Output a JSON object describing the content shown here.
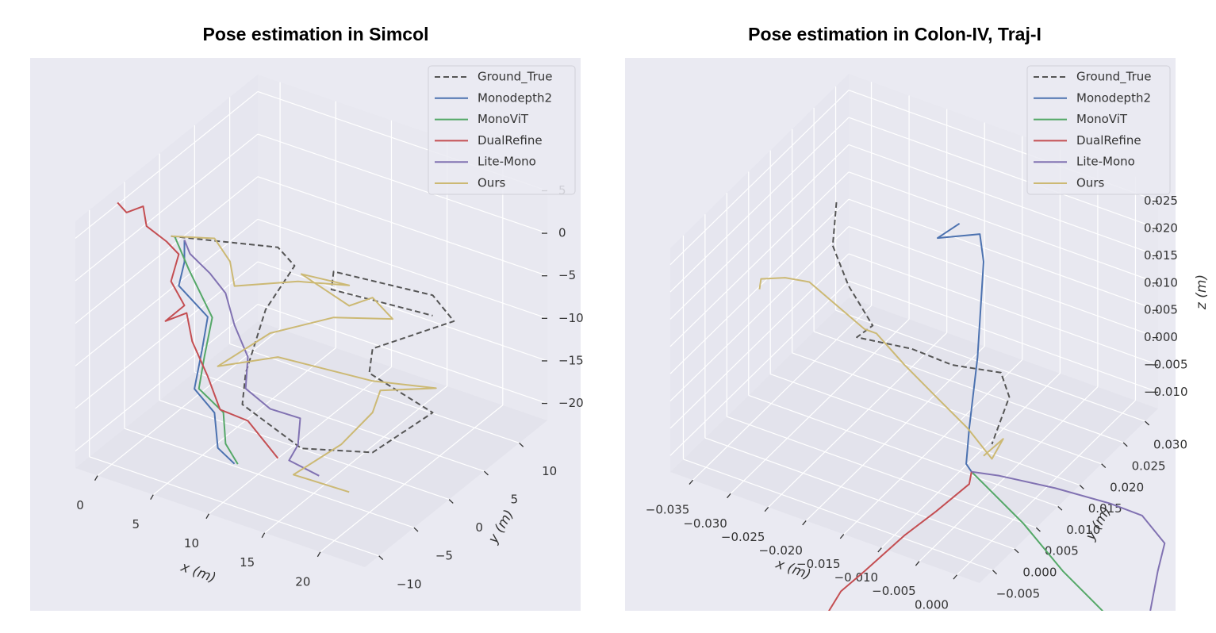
{
  "chart_data": [
    {
      "type": "line3d",
      "title": "Pose estimation in Simcol",
      "xlabel": "x (m)",
      "ylabel": "y (m)",
      "xlim": [
        -2,
        24
      ],
      "ylim": [
        -12,
        14
      ],
      "zlim": [
        -22,
        7
      ],
      "xticks": [
        0,
        5,
        10,
        15,
        20
      ],
      "yticks": [
        {
          "value": -10,
          "label": "−10"
        },
        {
          "value": -5,
          "label": "−5"
        },
        0,
        5,
        10
      ],
      "zticks": [
        {
          "value": -20,
          "label": "−20"
        },
        {
          "value": -15,
          "label": "−15"
        },
        {
          "value": -10,
          "label": "−10"
        },
        {
          "value": -5,
          "label": "−5"
        },
        0,
        5
      ],
      "grid": true,
      "legend": "upper right",
      "series": [
        {
          "name": "Ground_True",
          "color": "#555555",
          "linestyle": "dashed",
          "x": [
            -1.6,
            8,
            9.5,
            6.9,
            5.1,
            4.8,
            10.1,
            16.5,
            21.9,
            16.2,
            16.5,
            23.8,
            21.9,
            13,
            12.8,
            21.9
          ],
          "y": [
            1,
            1,
            1,
            1,
            1,
            1,
            1,
            1,
            1,
            1,
            1,
            1,
            1,
            1,
            1,
            1
          ],
          "z": [
            -3.2,
            -0.2,
            -1.7,
            -8,
            -16.3,
            -20.1,
            -22.9,
            -20.5,
            -13.4,
            -11.3,
            -8.3,
            -1.8,
            0.4,
            -0.8,
            -3,
            -2
          ]
        },
        {
          "name": "Monodepth2",
          "color": "#4c72b0",
          "linestyle": "solid",
          "x": [
            -0.4,
            -0.4,
            -0.9,
            1.7,
            1.2,
            0.5,
            2.3,
            2.6,
            4.1
          ],
          "y": [
            1,
            1,
            1,
            1,
            1,
            1,
            1,
            1,
            1
          ],
          "z": [
            -3.1,
            -5.7,
            -8.7,
            -11.2,
            -15.2,
            -20.2,
            -22.2,
            -26.2,
            -27.4
          ]
        },
        {
          "name": "MonoViT",
          "color": "#55a868",
          "linestyle": "solid",
          "x": [
            -1.3,
            0,
            2.1,
            1.4,
            0.9,
            3.1,
            3.3,
            4.4
          ],
          "y": [
            1,
            1,
            1,
            1,
            1,
            1,
            1,
            1
          ],
          "z": [
            -3,
            -6.4,
            -11.1,
            -16,
            -20,
            -21.8,
            -25.4,
            -27.3
          ]
        },
        {
          "name": "DualRefine",
          "color": "#c44e52",
          "linestyle": "solid",
          "x": [
            -6.4,
            -5.6,
            -4.1,
            -3.8,
            -2,
            -0.9,
            -1.6,
            -0.4,
            -2.1,
            -0.2,
            0.3,
            1.7,
            2.8,
            5.3,
            8
          ],
          "y": [
            1,
            1,
            1,
            1,
            1,
            1,
            1,
            1,
            1,
            1,
            1,
            1,
            1,
            1,
            1
          ],
          "z": [
            -1.4,
            -2.2,
            -0.8,
            -3,
            -4,
            -5,
            -8.5,
            -10.8,
            -13.4,
            -11.6,
            -14.7,
            -18.2,
            -21.6,
            -21.8,
            -25
          ]
        },
        {
          "name": "Lite-Mono",
          "color": "#8172b2",
          "linestyle": "solid",
          "x": [
            -0.4,
            0.1,
            1.9,
            3.3,
            4.1,
            5.3,
            5.1,
            7.3,
            10,
            9.8,
            9,
            11.7
          ],
          "y": [
            1,
            1,
            1,
            1,
            1,
            1,
            1,
            1,
            1,
            1,
            1,
            1
          ],
          "z": [
            -3.1,
            -4.5,
            -6,
            -7.7,
            -11.1,
            -14.3,
            -18.1,
            -19.5,
            -19.4,
            -22.6,
            -24.8,
            -25.4
          ]
        },
        {
          "name": "Ours",
          "color": "#ccb974",
          "linestyle": "solid",
          "x": [
            -1.6,
            2.3,
            3.7,
            4.1,
            9.8,
            14.4,
            10.1,
            14.4,
            16.5,
            18.3,
            13,
            7.3,
            2.6,
            8,
            16.5,
            22.2,
            17.2,
            16.5,
            13.7,
            9.4,
            14.4
          ],
          "y": [
            1,
            1,
            1,
            1,
            1,
            1,
            1,
            1,
            1,
            1,
            1,
            1,
            1,
            1,
            1,
            1,
            1,
            1,
            1,
            1,
            1
          ],
          "z": [
            -3.2,
            -1.7,
            -3.8,
            -6.5,
            -3.4,
            -1.8,
            -2.4,
            -4.2,
            -2.3,
            -4,
            -6.2,
            -10.6,
            -16.6,
            -13.1,
            -12.1,
            -10.4,
            -12.9,
            -15.8,
            -20.8,
            -26.3,
            -26.1
          ]
        }
      ]
    },
    {
      "type": "line3d",
      "title": "Pose estimation in Colon-IV, Traj-I",
      "xlabel": "x (m)",
      "ylabel": "y (m)",
      "zlabel": "z (m)",
      "xlim": [
        -0.038,
        0.003
      ],
      "ylim": [
        -0.008,
        0.033
      ],
      "zlim": [
        -0.013,
        0.028
      ],
      "xticks": [
        {
          "value": -0.035,
          "label": "−0.035"
        },
        {
          "value": -0.03,
          "label": "−0.030"
        },
        {
          "value": -0.025,
          "label": "−0.025"
        },
        {
          "value": -0.02,
          "label": "−0.020"
        },
        {
          "value": -0.015,
          "label": "−0.015"
        },
        {
          "value": -0.01,
          "label": "−0.010"
        },
        {
          "value": -0.005,
          "label": "−0.005"
        },
        {
          "value": 0,
          "label": "0.000"
        }
      ],
      "yticks": [
        {
          "value": -0.005,
          "label": "−0.005"
        },
        {
          "value": 0,
          "label": "0.000"
        },
        0.005,
        {
          "value": 0.01,
          "label": "0.010"
        },
        0.015,
        {
          "value": 0.02,
          "label": "0.020"
        },
        0.025,
        {
          "value": 0.03,
          "label": "0.030"
        }
      ],
      "zticks": [
        {
          "value": -0.01,
          "label": "−0.010"
        },
        {
          "value": -0.005,
          "label": "−0.005"
        },
        {
          "value": 0,
          "label": "0.000"
        },
        0.005,
        {
          "value": 0.01,
          "label": "0.010"
        },
        0.015,
        {
          "value": 0.02,
          "label": "0.020"
        },
        0.025
      ],
      "grid": true,
      "legend": "upper right",
      "series": [
        {
          "name": "Ground_True",
          "color": "#555555",
          "linestyle": "dashed",
          "x": [
            -0.0278,
            -0.0283,
            -0.0262,
            -0.023,
            -0.0251,
            -0.0178,
            -0.0125,
            -0.006,
            -0.0049,
            -0.0072
          ],
          "y": [
            0.0125,
            0.0125,
            0.0125,
            0.0125,
            0.0125,
            0.0125,
            0.0125,
            0.0125,
            0.0125,
            0.0125
          ],
          "z": [
            0.0255,
            0.0173,
            0.011,
            0.0053,
            0.0021,
            0.0036,
            0.0033,
            0.0051,
            0.0012,
            -0.0086
          ]
        },
        {
          "name": "Monodepth2",
          "color": "#4c72b0",
          "linestyle": "solid",
          "x": [
            -0.0115,
            -0.0144,
            -0.0088,
            -0.0083,
            -0.0091,
            -0.0102,
            -0.0106,
            -0.0099
          ],
          "y": [
            0.0125,
            0.0125,
            0.0125,
            0.0125,
            0.0125,
            0.0125,
            0.0125,
            0.0125
          ],
          "z": [
            0.0297,
            0.0256,
            0.0291,
            0.0243,
            0.0064,
            -0.0072,
            -0.0139,
            -0.015
          ]
        },
        {
          "name": "MonoViT",
          "color": "#55a868",
          "linestyle": "solid",
          "x": [
            -0.0099,
            -0.0083,
            -0.003,
            0.0022,
            0.0075
          ],
          "y": [
            0.0125,
            0.0125,
            0.0125,
            0.0125,
            0.0125
          ],
          "z": [
            -0.015,
            -0.0164,
            -0.0211,
            -0.0272,
            -0.0319
          ]
        },
        {
          "name": "DualRefine",
          "color": "#c44e52",
          "linestyle": "solid",
          "x": [
            -0.0099,
            -0.0102,
            -0.0146,
            -0.0188,
            -0.0241,
            -0.0272,
            -0.0288
          ],
          "y": [
            0.0125,
            0.0125,
            0.0125,
            0.0125,
            0.0125,
            0.0125,
            0.0125
          ],
          "z": [
            -0.015,
            -0.0174,
            -0.0246,
            -0.0311,
            -0.0403,
            -0.0455,
            -0.0499
          ]
        },
        {
          "name": "Lite-Mono",
          "color": "#8172b2",
          "linestyle": "solid",
          "x": [
            -0.0099,
            -0.0062,
            0.0012,
            0.0085,
            0.0127,
            0.0157,
            0.0148,
            0.0138
          ],
          "y": [
            0.0125,
            0.0125,
            0.0125,
            0.0125,
            0.0125,
            0.0125,
            0.0125,
            0.0125
          ],
          "z": [
            -0.015,
            -0.0139,
            -0.0125,
            -0.0117,
            -0.0118,
            -0.0154,
            -0.0209,
            -0.0287
          ]
        },
        {
          "name": "Ours",
          "color": "#ccb974",
          "linestyle": "solid",
          "x": [
            -0.038,
            -0.0378,
            -0.0346,
            -0.0314,
            -0.0241,
            -0.0225,
            -0.0188,
            -0.0146,
            -0.0104,
            -0.0072,
            -0.0057,
            -0.0083
          ],
          "y": [
            0.0125,
            0.0125,
            0.0125,
            0.0125,
            0.0125,
            0.0125,
            0.0125,
            0.0125,
            0.0125,
            0.0125,
            0.0125,
            0.0125
          ],
          "z": [
            0.0045,
            0.0065,
            0.0083,
            0.0091,
            0.0041,
            0.0041,
            0.0002,
            -0.0036,
            -0.0073,
            -0.0113,
            -0.0069,
            -0.0113
          ]
        }
      ]
    }
  ]
}
